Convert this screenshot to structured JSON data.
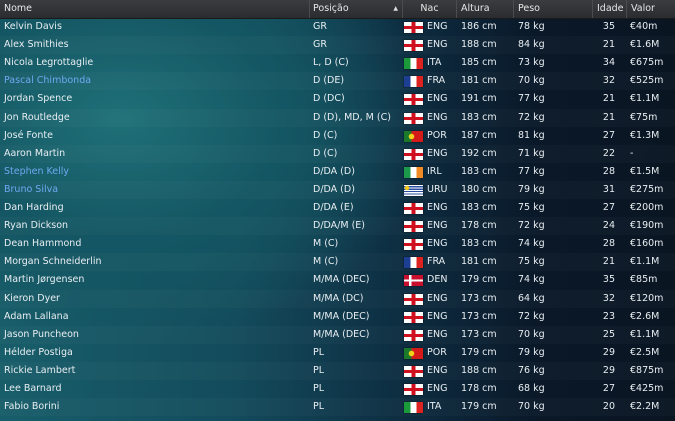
{
  "columns": {
    "name": "Nome",
    "position": "Posição",
    "sort_arrow": "▲",
    "nation": "Nac",
    "height": "Altura",
    "weight": "Peso",
    "age": "Idade",
    "value": "Valor"
  },
  "highlight_color": "#6fa8f0",
  "players": [
    {
      "name": "Kelvin Davis",
      "position": "GR",
      "flag": "eng",
      "nation": "ENG",
      "height": "186 cm",
      "weight": "78 kg",
      "age": "35",
      "value": "€40m",
      "highlight": false
    },
    {
      "name": "Alex Smithies",
      "position": "GR",
      "flag": "eng",
      "nation": "ENG",
      "height": "188 cm",
      "weight": "84 kg",
      "age": "21",
      "value": "€1.6M",
      "highlight": false
    },
    {
      "name": "Nicola Legrottaglie",
      "position": "L, D (C)",
      "flag": "ita",
      "nation": "ITA",
      "height": "185 cm",
      "weight": "73 kg",
      "age": "34",
      "value": "€675m",
      "highlight": false
    },
    {
      "name": "Pascal Chimbonda",
      "position": "D (DE)",
      "flag": "fra",
      "nation": "FRA",
      "height": "181 cm",
      "weight": "70 kg",
      "age": "32",
      "value": "€525m",
      "highlight": true
    },
    {
      "name": "Jordan Spence",
      "position": "D (DC)",
      "flag": "eng",
      "nation": "ENG",
      "height": "191 cm",
      "weight": "77 kg",
      "age": "21",
      "value": "€1.1M",
      "highlight": false
    },
    {
      "name": "Jon Routledge",
      "position": "D (D), MD, M (C)",
      "flag": "eng",
      "nation": "ENG",
      "height": "183 cm",
      "weight": "72 kg",
      "age": "21",
      "value": "€75m",
      "highlight": false
    },
    {
      "name": "José Fonte",
      "position": "D (C)",
      "flag": "por",
      "nation": "POR",
      "height": "187 cm",
      "weight": "81 kg",
      "age": "27",
      "value": "€1.3M",
      "highlight": false
    },
    {
      "name": "Aaron Martin",
      "position": "D (C)",
      "flag": "eng",
      "nation": "ENG",
      "height": "192 cm",
      "weight": "71 kg",
      "age": "22",
      "value": "-",
      "highlight": false
    },
    {
      "name": "Stephen Kelly",
      "position": "D/DA (D)",
      "flag": "irl",
      "nation": "IRL",
      "height": "183 cm",
      "weight": "77 kg",
      "age": "28",
      "value": "€1.5M",
      "highlight": true
    },
    {
      "name": "Bruno Silva",
      "position": "D/DA (D)",
      "flag": "uru",
      "nation": "URU",
      "height": "180 cm",
      "weight": "79 kg",
      "age": "31",
      "value": "€275m",
      "highlight": true
    },
    {
      "name": "Dan Harding",
      "position": "D/DA (E)",
      "flag": "eng",
      "nation": "ENG",
      "height": "183 cm",
      "weight": "75 kg",
      "age": "27",
      "value": "€200m",
      "highlight": false
    },
    {
      "name": "Ryan Dickson",
      "position": "D/DA/M (E)",
      "flag": "eng",
      "nation": "ENG",
      "height": "178 cm",
      "weight": "72 kg",
      "age": "24",
      "value": "€190m",
      "highlight": false
    },
    {
      "name": "Dean Hammond",
      "position": "M (C)",
      "flag": "eng",
      "nation": "ENG",
      "height": "183 cm",
      "weight": "74 kg",
      "age": "28",
      "value": "€160m",
      "highlight": false
    },
    {
      "name": "Morgan Schneiderlin",
      "position": "M (C)",
      "flag": "fra",
      "nation": "FRA",
      "height": "181 cm",
      "weight": "75 kg",
      "age": "21",
      "value": "€1.1M",
      "highlight": false
    },
    {
      "name": "Martin Jørgensen",
      "position": "M/MA (DEC)",
      "flag": "den",
      "nation": "DEN",
      "height": "179 cm",
      "weight": "74 kg",
      "age": "35",
      "value": "€85m",
      "highlight": false
    },
    {
      "name": "Kieron Dyer",
      "position": "M/MA (DC)",
      "flag": "eng",
      "nation": "ENG",
      "height": "173 cm",
      "weight": "64 kg",
      "age": "32",
      "value": "€120m",
      "highlight": false
    },
    {
      "name": "Adam Lallana",
      "position": "M/MA (DEC)",
      "flag": "eng",
      "nation": "ENG",
      "height": "173 cm",
      "weight": "72 kg",
      "age": "23",
      "value": "€2.6M",
      "highlight": false
    },
    {
      "name": "Jason Puncheon",
      "position": "M/MA (DEC)",
      "flag": "eng",
      "nation": "ENG",
      "height": "173 cm",
      "weight": "70 kg",
      "age": "25",
      "value": "€1.1M",
      "highlight": false
    },
    {
      "name": "Hélder Postiga",
      "position": "PL",
      "flag": "por",
      "nation": "POR",
      "height": "179 cm",
      "weight": "79 kg",
      "age": "29",
      "value": "€2.5M",
      "highlight": false
    },
    {
      "name": "Rickie Lambert",
      "position": "PL",
      "flag": "eng",
      "nation": "ENG",
      "height": "188 cm",
      "weight": "76 kg",
      "age": "29",
      "value": "€875m",
      "highlight": false
    },
    {
      "name": "Lee Barnard",
      "position": "PL",
      "flag": "eng",
      "nation": "ENG",
      "height": "178 cm",
      "weight": "68 kg",
      "age": "27",
      "value": "€425m",
      "highlight": false
    },
    {
      "name": "Fabio Borini",
      "position": "PL",
      "flag": "ita",
      "nation": "ITA",
      "height": "179 cm",
      "weight": "70 kg",
      "age": "20",
      "value": "€2.2M",
      "highlight": false
    }
  ]
}
